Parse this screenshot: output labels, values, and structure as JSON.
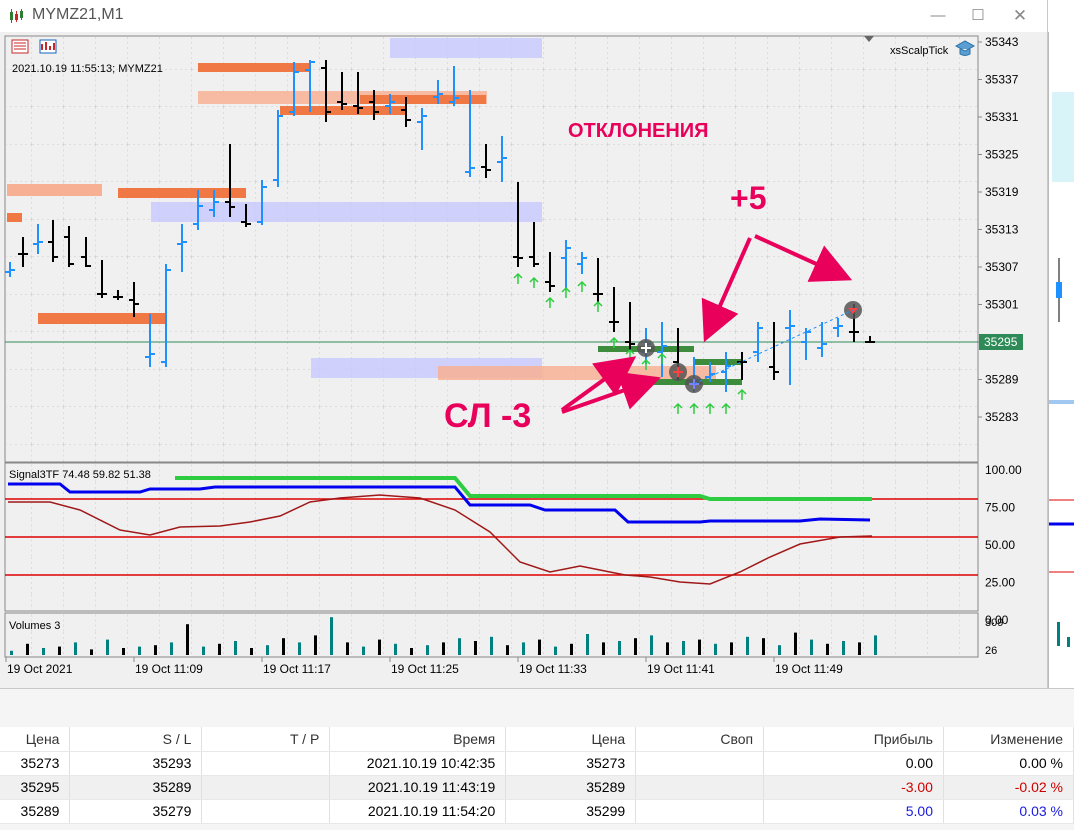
{
  "window": {
    "title": "MYMZ21,M1",
    "buttons": [
      "minimize",
      "maximize",
      "close"
    ]
  },
  "chart": {
    "info_label": "2021.10.19 11:55:13; MYMZ21",
    "indicator_name": "xsScalpTick",
    "current_price": "35295",
    "price_ticks": [
      "35343",
      "35337",
      "35331",
      "35325",
      "35319",
      "35313",
      "35307",
      "35301",
      "35295",
      "35289",
      "35283"
    ],
    "annotations": {
      "deviations": "ОТКЛОНЕНИЯ",
      "plus": "+5",
      "stop_loss": "СЛ -3"
    },
    "colors": {
      "bull_bar": "#1e90ff",
      "bear_bar": "#000000",
      "annotation": "#e8005a",
      "signal_up": "#2ecc40",
      "signal_mid": "#0000ee",
      "signal_low": "#a01818",
      "level_line": "#dd0000",
      "volume": "#008080",
      "price_line": "#2e8b57"
    }
  },
  "signal_panel": {
    "label": "Signal3TF 74.48 59.82 51.38",
    "ticks": [
      "100.00",
      "75.00",
      "50.00",
      "25.00",
      "0.00"
    ]
  },
  "volume_panel": {
    "label": "Volumes 3",
    "ticks": [
      "309",
      "26"
    ]
  },
  "time_axis": [
    "19 Oct 2021",
    "19 Oct 11:09",
    "19 Oct 11:17",
    "19 Oct 11:25",
    "19 Oct 11:33",
    "19 Oct 11:41",
    "19 Oct 11:49"
  ],
  "trades_table": {
    "columns": [
      "Цена",
      "S / L",
      "T / P",
      "Время",
      "Цена",
      "Своп",
      "Прибыль",
      "Изменение"
    ],
    "rows": [
      [
        "35273",
        "35293",
        "",
        "2021.10.19 10:42:35",
        "35273",
        "",
        "0.00",
        "0.00 %"
      ],
      [
        "35295",
        "35289",
        "",
        "2021.10.19 11:43:19",
        "35289",
        "",
        "-3.00",
        "-0.02 %"
      ],
      [
        "35289",
        "35279",
        "",
        "2021.10.19 11:54:20",
        "35299",
        "",
        "5.00",
        "0.03 %"
      ]
    ]
  }
}
